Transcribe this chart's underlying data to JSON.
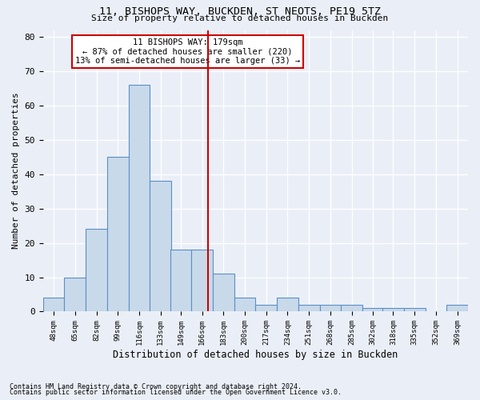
{
  "title1": "11, BISHOPS WAY, BUCKDEN, ST NEOTS, PE19 5TZ",
  "title2": "Size of property relative to detached houses in Buckden",
  "xlabel": "Distribution of detached houses by size in Buckden",
  "ylabel": "Number of detached properties",
  "bar_color": "#c8d9ea",
  "bar_edge_color": "#5b8fc7",
  "background_color": "#eaeff7",
  "grid_color": "#ffffff",
  "bins": [
    48,
    65,
    82,
    99,
    116,
    133,
    149,
    166,
    183,
    200,
    217,
    234,
    251,
    268,
    285,
    302,
    318,
    335,
    352,
    369,
    386
  ],
  "counts": [
    4,
    10,
    24,
    45,
    66,
    38,
    18,
    18,
    11,
    4,
    2,
    4,
    2,
    2,
    2,
    1,
    1,
    1,
    0,
    2
  ],
  "property_value": 179,
  "annotation_text": "11 BISHOPS WAY: 179sqm\n← 87% of detached houses are smaller (220)\n13% of semi-detached houses are larger (33) →",
  "annotation_box_color": "#ffffff",
  "annotation_box_edge_color": "#cc0000",
  "vline_color": "#cc0000",
  "footnote1": "Contains HM Land Registry data © Crown copyright and database right 2024.",
  "footnote2": "Contains public sector information licensed under the Open Government Licence v3.0.",
  "ylim": [
    0,
    82
  ],
  "yticks": [
    0,
    10,
    20,
    30,
    40,
    50,
    60,
    70,
    80
  ]
}
